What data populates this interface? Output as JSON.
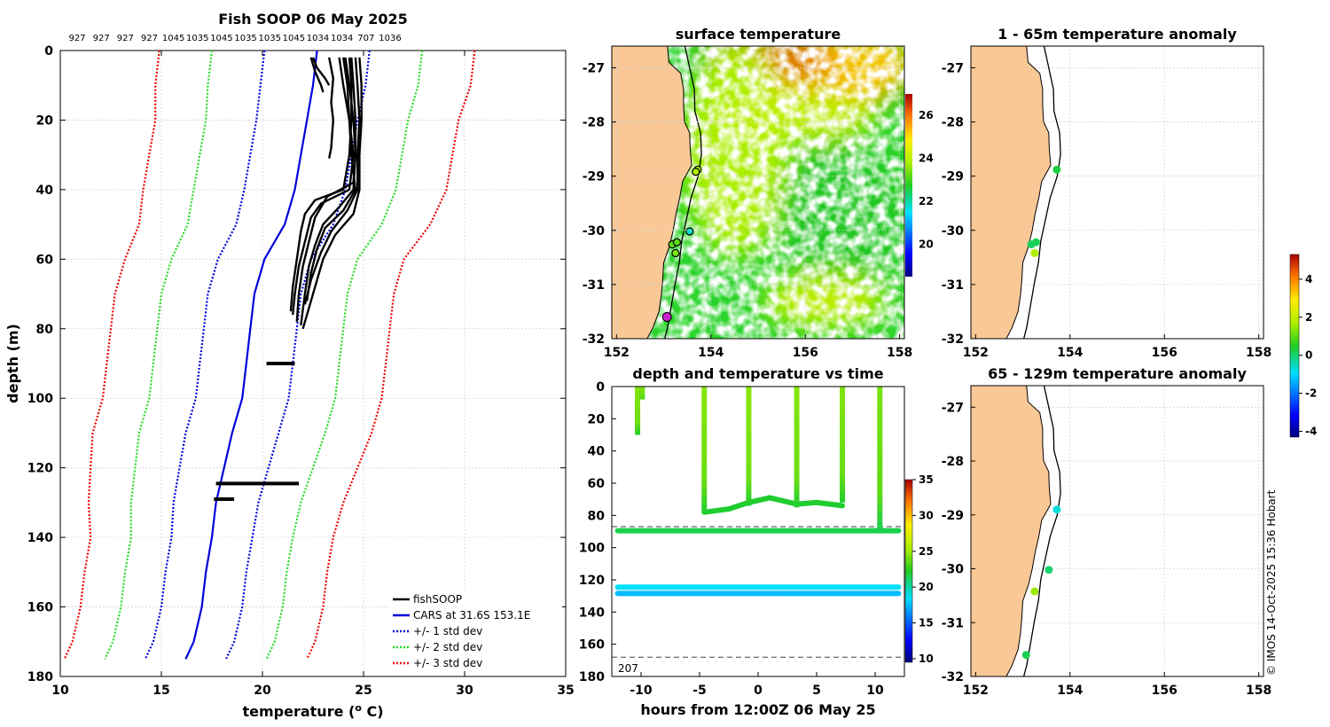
{
  "colors": {
    "land": "#f9c896",
    "coast": "#000000",
    "cars": "#0000dd",
    "sd1": "#0000dd",
    "sd2": "#22dd22",
    "sd3": "#ee0000",
    "fish": "#000000"
  },
  "panel_profile": {
    "title": "Fish SOOP 06 May 2025",
    "top_labels": [
      "927",
      "927",
      "927",
      "927",
      "1045",
      "1035",
      "1045",
      "1035",
      "1035",
      "1045",
      "1034",
      "1034",
      "707",
      "1036"
    ],
    "xlabel": "temperature (",
    "xlabel_sup": "o",
    "xlabel_end": " C)",
    "ylabel": "depth (m)",
    "legend": [
      "fishSOOP",
      "CARS at 31.6S 153.1E",
      "+/- 1 std dev",
      "+/- 2 std dev",
      "+/- 3 std dev"
    ]
  },
  "panel_sst": {
    "title": "surface temperature",
    "colorbar_ticks": [
      "20",
      "22",
      "24",
      "26"
    ]
  },
  "panel_anom_upper": {
    "title": "1 - 65m temperature anomaly"
  },
  "panel_anom_lower": {
    "title": "65 - 129m temperature anomaly"
  },
  "panel_time": {
    "title": "depth and temperature vs time",
    "xlabel": "hours from 12:00Z 06 May 25",
    "max_depth_label": "207",
    "colorbar_ticks": [
      "10",
      "15",
      "20",
      "25",
      "30",
      "35"
    ]
  },
  "anom_colorbar_ticks": [
    "-4",
    "-2",
    "0",
    "2",
    "4"
  ],
  "credit": "© IMOS 14-Oct-2025 15:36 Hobart",
  "chart_data": [
    {
      "type": "line",
      "id": "profile",
      "title": "Fish SOOP 06 May 2025",
      "xlabel": "temperature (o C)",
      "ylabel": "depth (m)",
      "xlim": [
        10,
        35
      ],
      "ylim": [
        0,
        180
      ],
      "xticks": [
        10,
        15,
        20,
        25,
        30,
        35
      ],
      "yticks": [
        0,
        20,
        40,
        60,
        80,
        100,
        120,
        140,
        160,
        180
      ],
      "cars_depth": [
        0,
        10,
        20,
        30,
        40,
        50,
        60,
        70,
        80,
        90,
        100,
        110,
        120,
        130,
        140,
        150,
        160,
        170,
        175
      ],
      "cars_mean": [
        22.7,
        22.5,
        22.2,
        21.9,
        21.6,
        21.1,
        20.1,
        19.6,
        19.4,
        19.2,
        19.0,
        18.5,
        18.1,
        17.7,
        17.5,
        17.2,
        17.0,
        16.6,
        16.2
      ],
      "cars_sd": [
        2.6,
        2.6,
        2.5,
        2.5,
        2.5,
        2.4,
        2.3,
        2.3,
        2.3,
        2.3,
        2.3,
        2.3,
        2.2,
        2.1,
        2.0,
        2.0,
        2.0,
        2.0,
        2.0
      ],
      "fish_profiles": [
        {
          "depth": [
            2,
            10,
            20,
            30,
            38,
            42,
            48,
            55,
            62,
            70,
            78
          ],
          "temp": [
            24.4,
            24.5,
            24.6,
            24.6,
            24.5,
            23.2,
            22.6,
            22.3,
            22.0,
            21.8,
            21.7
          ]
        },
        {
          "depth": [
            2,
            10,
            20,
            30,
            40,
            45,
            50,
            56,
            62,
            70,
            79
          ],
          "temp": [
            24.1,
            24.3,
            24.5,
            24.6,
            24.5,
            23.8,
            23.0,
            22.6,
            22.3,
            22.1,
            21.9
          ]
        },
        {
          "depth": [
            2,
            10,
            20,
            30,
            40,
            46,
            52,
            58,
            66,
            73
          ],
          "temp": [
            24.6,
            24.7,
            24.8,
            24.7,
            24.7,
            24.2,
            23.4,
            22.9,
            22.4,
            22.1
          ]
        },
        {
          "depth": [
            2,
            10,
            20,
            30,
            40,
            44,
            48,
            55,
            62,
            70,
            76
          ],
          "temp": [
            23.8,
            24.0,
            24.3,
            24.5,
            24.3,
            22.9,
            22.4,
            22.1,
            21.8,
            21.6,
            21.5
          ]
        },
        {
          "depth": [
            2,
            10,
            20,
            30,
            40,
            47,
            53,
            60,
            68,
            76,
            80
          ],
          "temp": [
            24.8,
            24.9,
            24.9,
            24.8,
            24.8,
            24.5,
            23.6,
            23.0,
            22.6,
            22.2,
            22.0
          ]
        },
        {
          "depth": [
            2,
            10,
            20,
            30,
            40,
            43,
            47,
            52,
            60,
            68,
            75
          ],
          "temp": [
            24.3,
            24.4,
            24.4,
            24.3,
            24.0,
            22.6,
            22.1,
            21.9,
            21.7,
            21.5,
            21.4
          ]
        },
        {
          "depth": [
            2,
            10,
            20,
            30,
            40,
            46,
            51,
            57,
            64,
            72
          ],
          "temp": [
            24.0,
            24.2,
            24.3,
            24.4,
            24.6,
            24.0,
            23.1,
            22.7,
            22.4,
            22.2
          ]
        },
        {
          "depth": [
            2,
            8,
            15,
            20,
            28,
            31
          ],
          "temp": [
            23.3,
            23.5,
            23.4,
            23.5,
            23.4,
            23.3
          ]
        },
        {
          "depth": [
            2,
            5,
            8,
            10
          ],
          "temp": [
            22.5,
            22.7,
            23.1,
            23.3
          ]
        },
        {
          "depth": [
            2,
            6,
            10,
            12
          ],
          "temp": [
            22.4,
            22.6,
            22.9,
            23.0
          ]
        }
      ],
      "fish_horizontal": [
        {
          "depth": 90,
          "temp": [
            20.2,
            21.6
          ]
        },
        {
          "depth": 124.5,
          "temp": [
            17.7,
            21.8
          ]
        },
        {
          "depth": 129,
          "temp": [
            17.6,
            18.6
          ]
        }
      ]
    },
    {
      "type": "heatmap",
      "id": "sst_map",
      "title": "surface temperature",
      "xlim": [
        151.9,
        158.1
      ],
      "ylim": [
        -32,
        -26.6
      ],
      "xticks": [
        152,
        154,
        156,
        158
      ],
      "yticks": [
        -27,
        -28,
        -29,
        -30,
        -31,
        -32
      ],
      "colorbar_range": [
        18.5,
        27
      ],
      "colorbar_ticks": [
        20,
        22,
        24,
        26
      ],
      "stations": [
        {
          "lon": 153.72,
          "lat": -28.88,
          "temp": 23.8
        },
        {
          "lon": 153.68,
          "lat": -28.92,
          "temp": 23.8
        },
        {
          "lon": 153.55,
          "lat": -30.02,
          "temp": 21.8
        },
        {
          "lon": 153.18,
          "lat": -30.26,
          "temp": 23.2
        },
        {
          "lon": 153.28,
          "lat": -30.22,
          "temp": 23.2
        },
        {
          "lon": 153.25,
          "lat": -30.42,
          "temp": 23.4
        },
        {
          "lon": 153.07,
          "lat": -31.6,
          "temp": 23.0
        }
      ]
    },
    {
      "type": "scatter",
      "id": "anom_upper",
      "title": "1 - 65m temperature anomaly",
      "xlim": [
        151.9,
        158.1
      ],
      "ylim": [
        -32,
        -26.6
      ],
      "xticks": [
        152,
        154,
        156,
        158
      ],
      "yticks": [
        -27,
        -28,
        -29,
        -30,
        -31,
        -32
      ],
      "points": [
        {
          "lon": 153.72,
          "lat": -28.88,
          "anom": 0.3
        },
        {
          "lon": 153.28,
          "lat": -30.22,
          "anom": 0.2
        },
        {
          "lon": 153.18,
          "lat": -30.26,
          "anom": 0.1
        },
        {
          "lon": 153.25,
          "lat": -30.42,
          "anom": 1.7
        }
      ]
    },
    {
      "type": "scatter",
      "id": "anom_lower",
      "title": "65 - 129m temperature anomaly",
      "xlim": [
        151.9,
        158.1
      ],
      "ylim": [
        -32,
        -26.6
      ],
      "xticks": [
        152,
        154,
        156,
        158
      ],
      "yticks": [
        -27,
        -28,
        -29,
        -30,
        -31,
        -32
      ],
      "points": [
        {
          "lon": 153.72,
          "lat": -28.9,
          "anom": -0.7
        },
        {
          "lon": 153.55,
          "lat": -30.02,
          "anom": 0.0
        },
        {
          "lon": 153.25,
          "lat": -30.42,
          "anom": 1.5
        },
        {
          "lon": 153.07,
          "lat": -31.6,
          "anom": 0.2
        }
      ]
    },
    {
      "type": "scatter",
      "id": "depth_time",
      "title": "depth and temperature vs time",
      "xlabel": "hours from 12:00Z 06 May 25",
      "xlim": [
        -12.5,
        12.5
      ],
      "ylim": [
        0,
        180
      ],
      "xticks": [
        -10,
        -5,
        0,
        5,
        10
      ],
      "yticks": [
        0,
        20,
        40,
        60,
        80,
        100,
        120,
        140,
        160,
        180
      ],
      "colorbar_range": [
        9.5,
        35
      ],
      "colorbar_ticks": [
        10,
        15,
        20,
        25,
        30,
        35
      ],
      "dashed_depths": [
        87,
        168
      ],
      "casts": [
        {
          "x": [
            -10.3,
            -10.3
          ],
          "depth": [
            0,
            30
          ],
          "temp": [
            24.5,
            22.0
          ]
        },
        {
          "x": [
            -9.9,
            -9.9
          ],
          "depth": [
            0,
            8
          ],
          "temp": [
            24.3,
            23.0
          ]
        },
        {
          "x": [
            -4.6,
            -4.6
          ],
          "depth": [
            0,
            78
          ],
          "temp": [
            24.5,
            22.0
          ]
        },
        {
          "x": [
            -0.8,
            -0.8
          ],
          "depth": [
            0,
            74
          ],
          "temp": [
            24.6,
            22.0
          ]
        },
        {
          "x": [
            3.3,
            3.3
          ],
          "depth": [
            0,
            75
          ],
          "temp": [
            24.5,
            21.9
          ]
        },
        {
          "x": [
            7.2,
            7.2
          ],
          "depth": [
            0,
            72
          ],
          "temp": [
            24.4,
            22.0
          ]
        },
        {
          "x": [
            10.4,
            10.4
          ],
          "depth": [
            0,
            88
          ],
          "temp": [
            24.2,
            21.5
          ]
        }
      ],
      "bottom_tracks": [
        {
          "x": [
            -4.6,
            -2.5,
            -0.8,
            1.0,
            3.3,
            5.0,
            7.2
          ],
          "depth": [
            78,
            76,
            72,
            69,
            73,
            72,
            74
          ],
          "temp": 22.0
        },
        {
          "x": [
            -12.0,
            12.0
          ],
          "depth": [
            89.5,
            89.5
          ],
          "temp": 21.5
        },
        {
          "x": [
            -12.0,
            12.0
          ],
          "depth": [
            124.5,
            124.5
          ],
          "temp": 18.5
        },
        {
          "x": [
            -12.0,
            12.0
          ],
          "depth": [
            128.5,
            128.5
          ],
          "temp": 17.5
        }
      ]
    }
  ]
}
